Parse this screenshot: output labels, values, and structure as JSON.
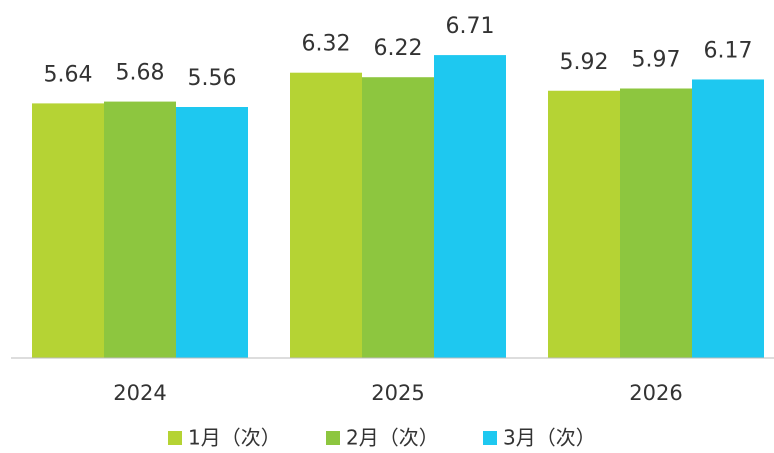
{
  "chart_data": {
    "type": "bar",
    "categories": [
      "2024",
      "2025",
      "2026"
    ],
    "series": [
      {
        "name": "1月（次）",
        "color": "#b5d334",
        "values": [
          5.64,
          6.32,
          5.92
        ]
      },
      {
        "name": "2月（次）",
        "color": "#8dc63f",
        "values": [
          5.68,
          6.22,
          5.97
        ]
      },
      {
        "name": "3月（次）",
        "color": "#1ec8f0",
        "values": [
          5.56,
          6.71,
          6.17
        ]
      }
    ],
    "ylim": [
      0,
      7
    ],
    "legend": "bottom"
  }
}
